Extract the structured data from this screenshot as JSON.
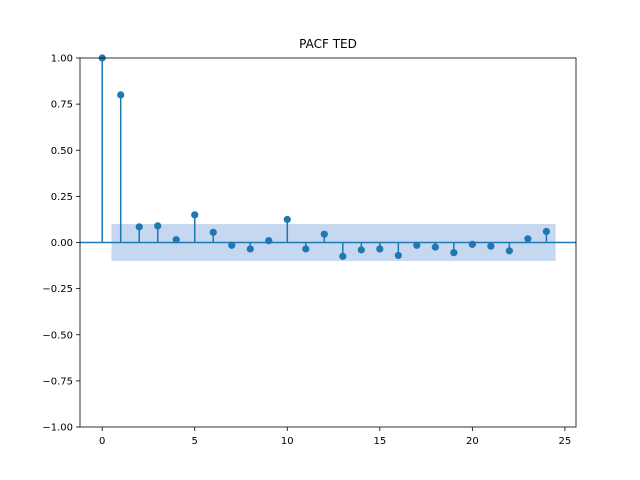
{
  "chart_data": {
    "type": "stem",
    "title": "PACF TED",
    "xlabel": "",
    "ylabel": "",
    "xlim": [
      -1.2,
      25.6
    ],
    "ylim": [
      -1.0,
      1.0
    ],
    "x_ticks": [
      0,
      5,
      10,
      15,
      20,
      25
    ],
    "x_tick_labels": [
      "0",
      "5",
      "10",
      "15",
      "20",
      "25"
    ],
    "y_ticks": [
      -1.0,
      -0.75,
      -0.5,
      -0.25,
      0.0,
      0.25,
      0.5,
      0.75,
      1.0
    ],
    "y_tick_labels": [
      "−1.00",
      "−0.75",
      "−0.50",
      "−0.25",
      "0.00",
      "0.25",
      "0.50",
      "0.75",
      "1.00"
    ],
    "lags": [
      0,
      1,
      2,
      3,
      4,
      5,
      6,
      7,
      8,
      9,
      10,
      11,
      12,
      13,
      14,
      15,
      16,
      17,
      18,
      19,
      20,
      21,
      22,
      23,
      24
    ],
    "values": [
      1.0,
      0.8,
      0.085,
      0.09,
      0.015,
      0.15,
      0.055,
      -0.015,
      -0.035,
      0.01,
      0.125,
      -0.035,
      0.045,
      -0.075,
      -0.04,
      -0.035,
      -0.07,
      -0.015,
      -0.025,
      -0.055,
      -0.01,
      -0.02,
      -0.045,
      0.02,
      0.06
    ],
    "confidence_band": {
      "x": [
        0.5,
        24.5
      ],
      "lower": -0.1,
      "upper": 0.1
    },
    "grid": false,
    "colors": {
      "stem": "#1f77b4",
      "band": "#aec7e8"
    }
  }
}
